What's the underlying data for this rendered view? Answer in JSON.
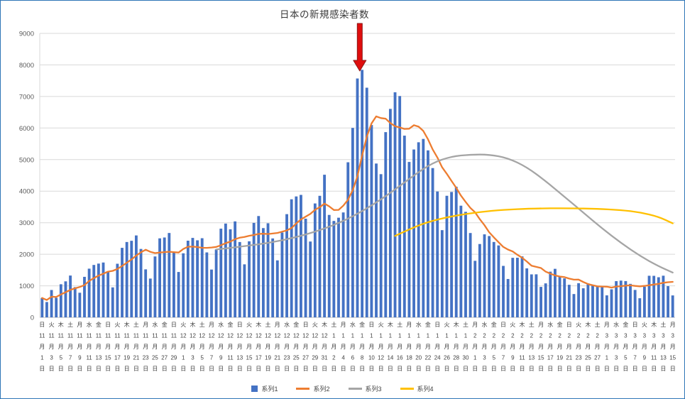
{
  "window": {
    "background": "#ffffff",
    "frame_border_color": "#2e75b6"
  },
  "chart_data": {
    "type": "bar",
    "title": "日本の新規感染者数",
    "ylabel": "",
    "xlabel": "",
    "ylim": [
      0,
      9000
    ],
    "ytick_step": 1000,
    "grid": true,
    "legend_position": "bottom",
    "x_label_interval": 2,
    "weekday_chars": [
      "日",
      "月",
      "火",
      "水",
      "木",
      "金",
      "土"
    ],
    "start_weekday_index": 0,
    "months": [
      {
        "month": 11,
        "days": 30
      },
      {
        "month": 12,
        "days": 31
      },
      {
        "month": 1,
        "days": 31
      },
      {
        "month": 2,
        "days": 28
      },
      {
        "month": 3,
        "days": 15
      }
    ],
    "series": [
      {
        "name": "系列1",
        "type": "bar",
        "color": "#4472C4",
        "values": [
          614,
          486,
          867,
          620,
          1049,
          1141,
          1325,
          957,
          780,
          1284,
          1543,
          1661,
          1704,
          1738,
          1440,
          950,
          1699,
          2203,
          2388,
          2427,
          2596,
          2168,
          1521,
          1229,
          1930,
          2504,
          2531,
          2674,
          2066,
          1438,
          2030,
          2430,
          2518,
          2442,
          2508,
          2058,
          1515,
          2152,
          2811,
          2972,
          2790,
          3041,
          2387,
          1680,
          2410,
          2994,
          3211,
          2829,
          2982,
          2501,
          1806,
          2688,
          3271,
          3742,
          3832,
          3881,
          3127,
          2403,
          3610,
          3852,
          4520,
          3246,
          3056,
          3158,
          3325,
          4915,
          6004,
          7570,
          7844,
          7278,
          6096,
          4875,
          4538,
          5870,
          6607,
          7133,
          7014,
          5759,
          4925,
          5320,
          5549,
          5655,
          5292,
          4731,
          3989,
          2764,
          3853,
          3974,
          4141,
          3539,
          3344,
          2673,
          1792,
          2324,
          2631,
          2577,
          2389,
          2279,
          1631,
          1216,
          1887,
          1889,
          1933,
          1552,
          1362,
          1364,
          965,
          1077,
          1448,
          1538,
          1301,
          1234,
          1032,
          739,
          1083,
          922,
          1076,
          1029,
          995,
          999,
          697,
          888,
          1148,
          1165,
          1150,
          1061,
          869,
          606,
          972,
          1318,
          1316,
          1271,
          1320,
          989,
          695
        ]
      },
      {
        "name": "系列2",
        "type": "line",
        "color": "#ED7D31",
        "derived_from": "系列1",
        "window": 7
      },
      {
        "name": "系列3",
        "type": "line",
        "color": "#A5A5A5",
        "points": [
          [
            37,
            2150
          ],
          [
            44,
            2270
          ],
          [
            51,
            2430
          ],
          [
            58,
            2700
          ],
          [
            65,
            3100
          ],
          [
            72,
            3720
          ],
          [
            79,
            4500
          ],
          [
            83,
            4900
          ],
          [
            87,
            5100
          ],
          [
            91,
            5160
          ],
          [
            95,
            5160
          ],
          [
            99,
            5050
          ],
          [
            103,
            4760
          ],
          [
            107,
            4320
          ],
          [
            111,
            3820
          ],
          [
            115,
            3320
          ],
          [
            119,
            2820
          ],
          [
            123,
            2360
          ],
          [
            127,
            1950
          ],
          [
            131,
            1620
          ],
          [
            134,
            1420
          ]
        ]
      },
      {
        "name": "系列4",
        "type": "line",
        "color": "#FFC000",
        "points": [
          [
            75,
            2580
          ],
          [
            79,
            2860
          ],
          [
            83,
            3070
          ],
          [
            88,
            3230
          ],
          [
            93,
            3340
          ],
          [
            98,
            3410
          ],
          [
            104,
            3450
          ],
          [
            112,
            3460
          ],
          [
            118,
            3440
          ],
          [
            123,
            3400
          ],
          [
            127,
            3330
          ],
          [
            131,
            3190
          ],
          [
            134,
            2980
          ]
        ]
      }
    ],
    "annotation_arrow": {
      "shape": "block-arrow-down",
      "color": "#df0d0d",
      "outline": "#8b1a1a",
      "at_index": 67.5
    }
  }
}
